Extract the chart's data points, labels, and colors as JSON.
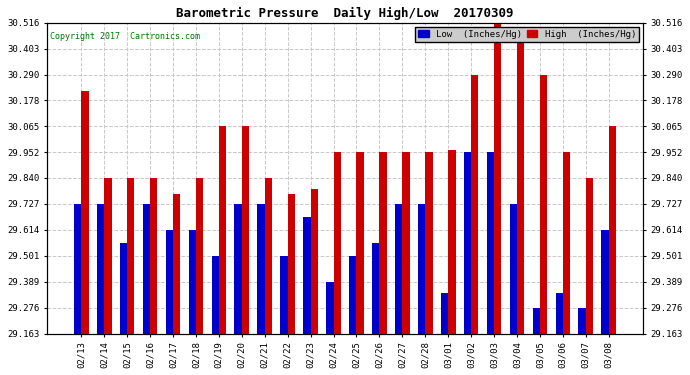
{
  "title": "Barometric Pressure  Daily High/Low  20170309",
  "copyright": "Copyright 2017  Cartronics.com",
  "legend_low": "Low  (Inches/Hg)",
  "legend_high": "High  (Inches/Hg)",
  "low_color": "#0000cc",
  "high_color": "#cc0000",
  "background_color": "#ffffff",
  "plot_bg_color": "#ffffff",
  "grid_color": "#c8c8c8",
  "ylim_min": 29.163,
  "ylim_max": 30.516,
  "yticks": [
    29.163,
    29.276,
    29.389,
    29.501,
    29.614,
    29.727,
    29.84,
    29.952,
    30.065,
    30.178,
    30.29,
    30.403,
    30.516
  ],
  "dates": [
    "02/13",
    "02/14",
    "02/15",
    "02/16",
    "02/17",
    "02/18",
    "02/19",
    "02/20",
    "02/21",
    "02/22",
    "02/23",
    "02/24",
    "02/25",
    "02/26",
    "02/27",
    "02/28",
    "03/01",
    "03/02",
    "03/03",
    "03/04",
    "03/05",
    "03/06",
    "03/07",
    "03/08"
  ],
  "high_values": [
    30.22,
    29.84,
    29.84,
    29.84,
    29.77,
    29.84,
    30.065,
    30.065,
    29.84,
    29.77,
    29.79,
    29.952,
    29.952,
    29.952,
    29.952,
    29.952,
    29.96,
    30.29,
    30.516,
    30.45,
    30.29,
    29.952,
    29.84,
    30.065
  ],
  "low_values": [
    29.727,
    29.727,
    29.558,
    29.727,
    29.614,
    29.614,
    29.501,
    29.727,
    29.727,
    29.501,
    29.67,
    29.389,
    29.501,
    29.558,
    29.727,
    29.727,
    29.34,
    29.952,
    29.952,
    29.727,
    29.276,
    29.34,
    29.276,
    29.614
  ],
  "bar_width": 0.32,
  "title_fontsize": 9,
  "tick_fontsize": 6.5,
  "copyright_color": "#007700"
}
